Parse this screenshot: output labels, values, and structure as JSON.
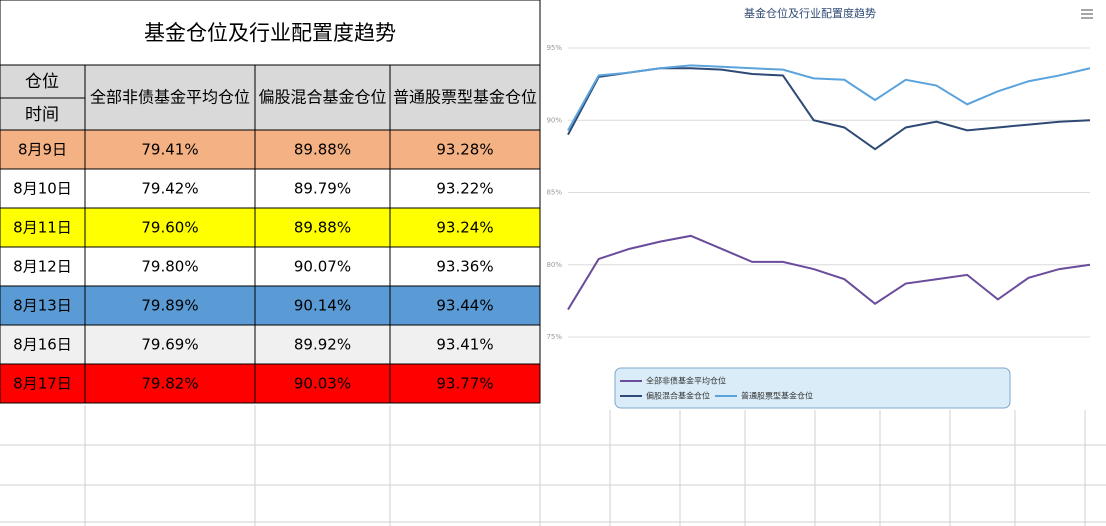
{
  "table": {
    "title": "基金仓位及行业配置度趋势",
    "corner": [
      "仓位",
      "时间"
    ],
    "columns": [
      "全部非债基金平均仓位",
      "偏股混合基金仓位",
      "普通股票型基金仓位"
    ],
    "rows": [
      [
        "8月9日",
        "79.41%",
        "89.88%",
        "93.28%"
      ],
      [
        "8月10日",
        "79.42%",
        "89.79%",
        "93.22%"
      ],
      [
        "8月11日",
        "79.60%",
        "89.88%",
        "93.24%"
      ],
      [
        "8月12日",
        "79.80%",
        "90.07%",
        "93.36%"
      ],
      [
        "8月13日",
        "79.89%",
        "90.14%",
        "93.44%"
      ],
      [
        "8月16日",
        "79.69%",
        "89.92%",
        "93.41%"
      ],
      [
        "8月17日",
        "79.82%",
        "90.03%",
        "93.77%"
      ]
    ]
  },
  "chart_data": {
    "type": "line",
    "title": "基金仓位及行业配置度趋势",
    "categories": [
      null,
      null,
      null,
      null,
      null,
      null,
      null,
      null,
      null,
      null,
      null,
      null,
      null,
      null,
      null,
      null,
      null,
      null
    ],
    "ylim": [
      75,
      95
    ],
    "yticks": [
      {
        "value": 75,
        "label": "75%"
      },
      {
        "value": 80,
        "label": "80%"
      },
      {
        "value": 85,
        "label": "85%"
      },
      {
        "value": 90,
        "label": "90%"
      },
      {
        "value": 95,
        "label": "95%"
      }
    ],
    "grid": true,
    "series": [
      {
        "name": "全部非债基金平均仓位",
        "color": "#6a4c9c",
        "values": [
          76.9,
          80.4,
          81.1,
          81.6,
          82.0,
          81.1,
          80.2,
          80.2,
          79.7,
          79.0,
          77.3,
          78.7,
          79.0,
          79.3,
          77.6,
          79.1,
          79.7,
          80.0
        ]
      },
      {
        "name": "偏股混合基金仓位",
        "color": "#2e4a74",
        "values": [
          89.0,
          93.0,
          93.3,
          93.6,
          93.6,
          93.5,
          93.2,
          93.1,
          90.0,
          89.5,
          88.0,
          89.5,
          89.9,
          89.3,
          89.5,
          89.7,
          89.9,
          90.0
        ]
      },
      {
        "name": "普通股票型基金仓位",
        "color": "#5ba3dc",
        "values": [
          89.3,
          93.1,
          93.3,
          93.6,
          93.8,
          93.7,
          93.6,
          93.5,
          92.9,
          92.8,
          91.4,
          92.8,
          92.4,
          91.1,
          92.0,
          92.7,
          93.1,
          93.6
        ]
      }
    ]
  }
}
